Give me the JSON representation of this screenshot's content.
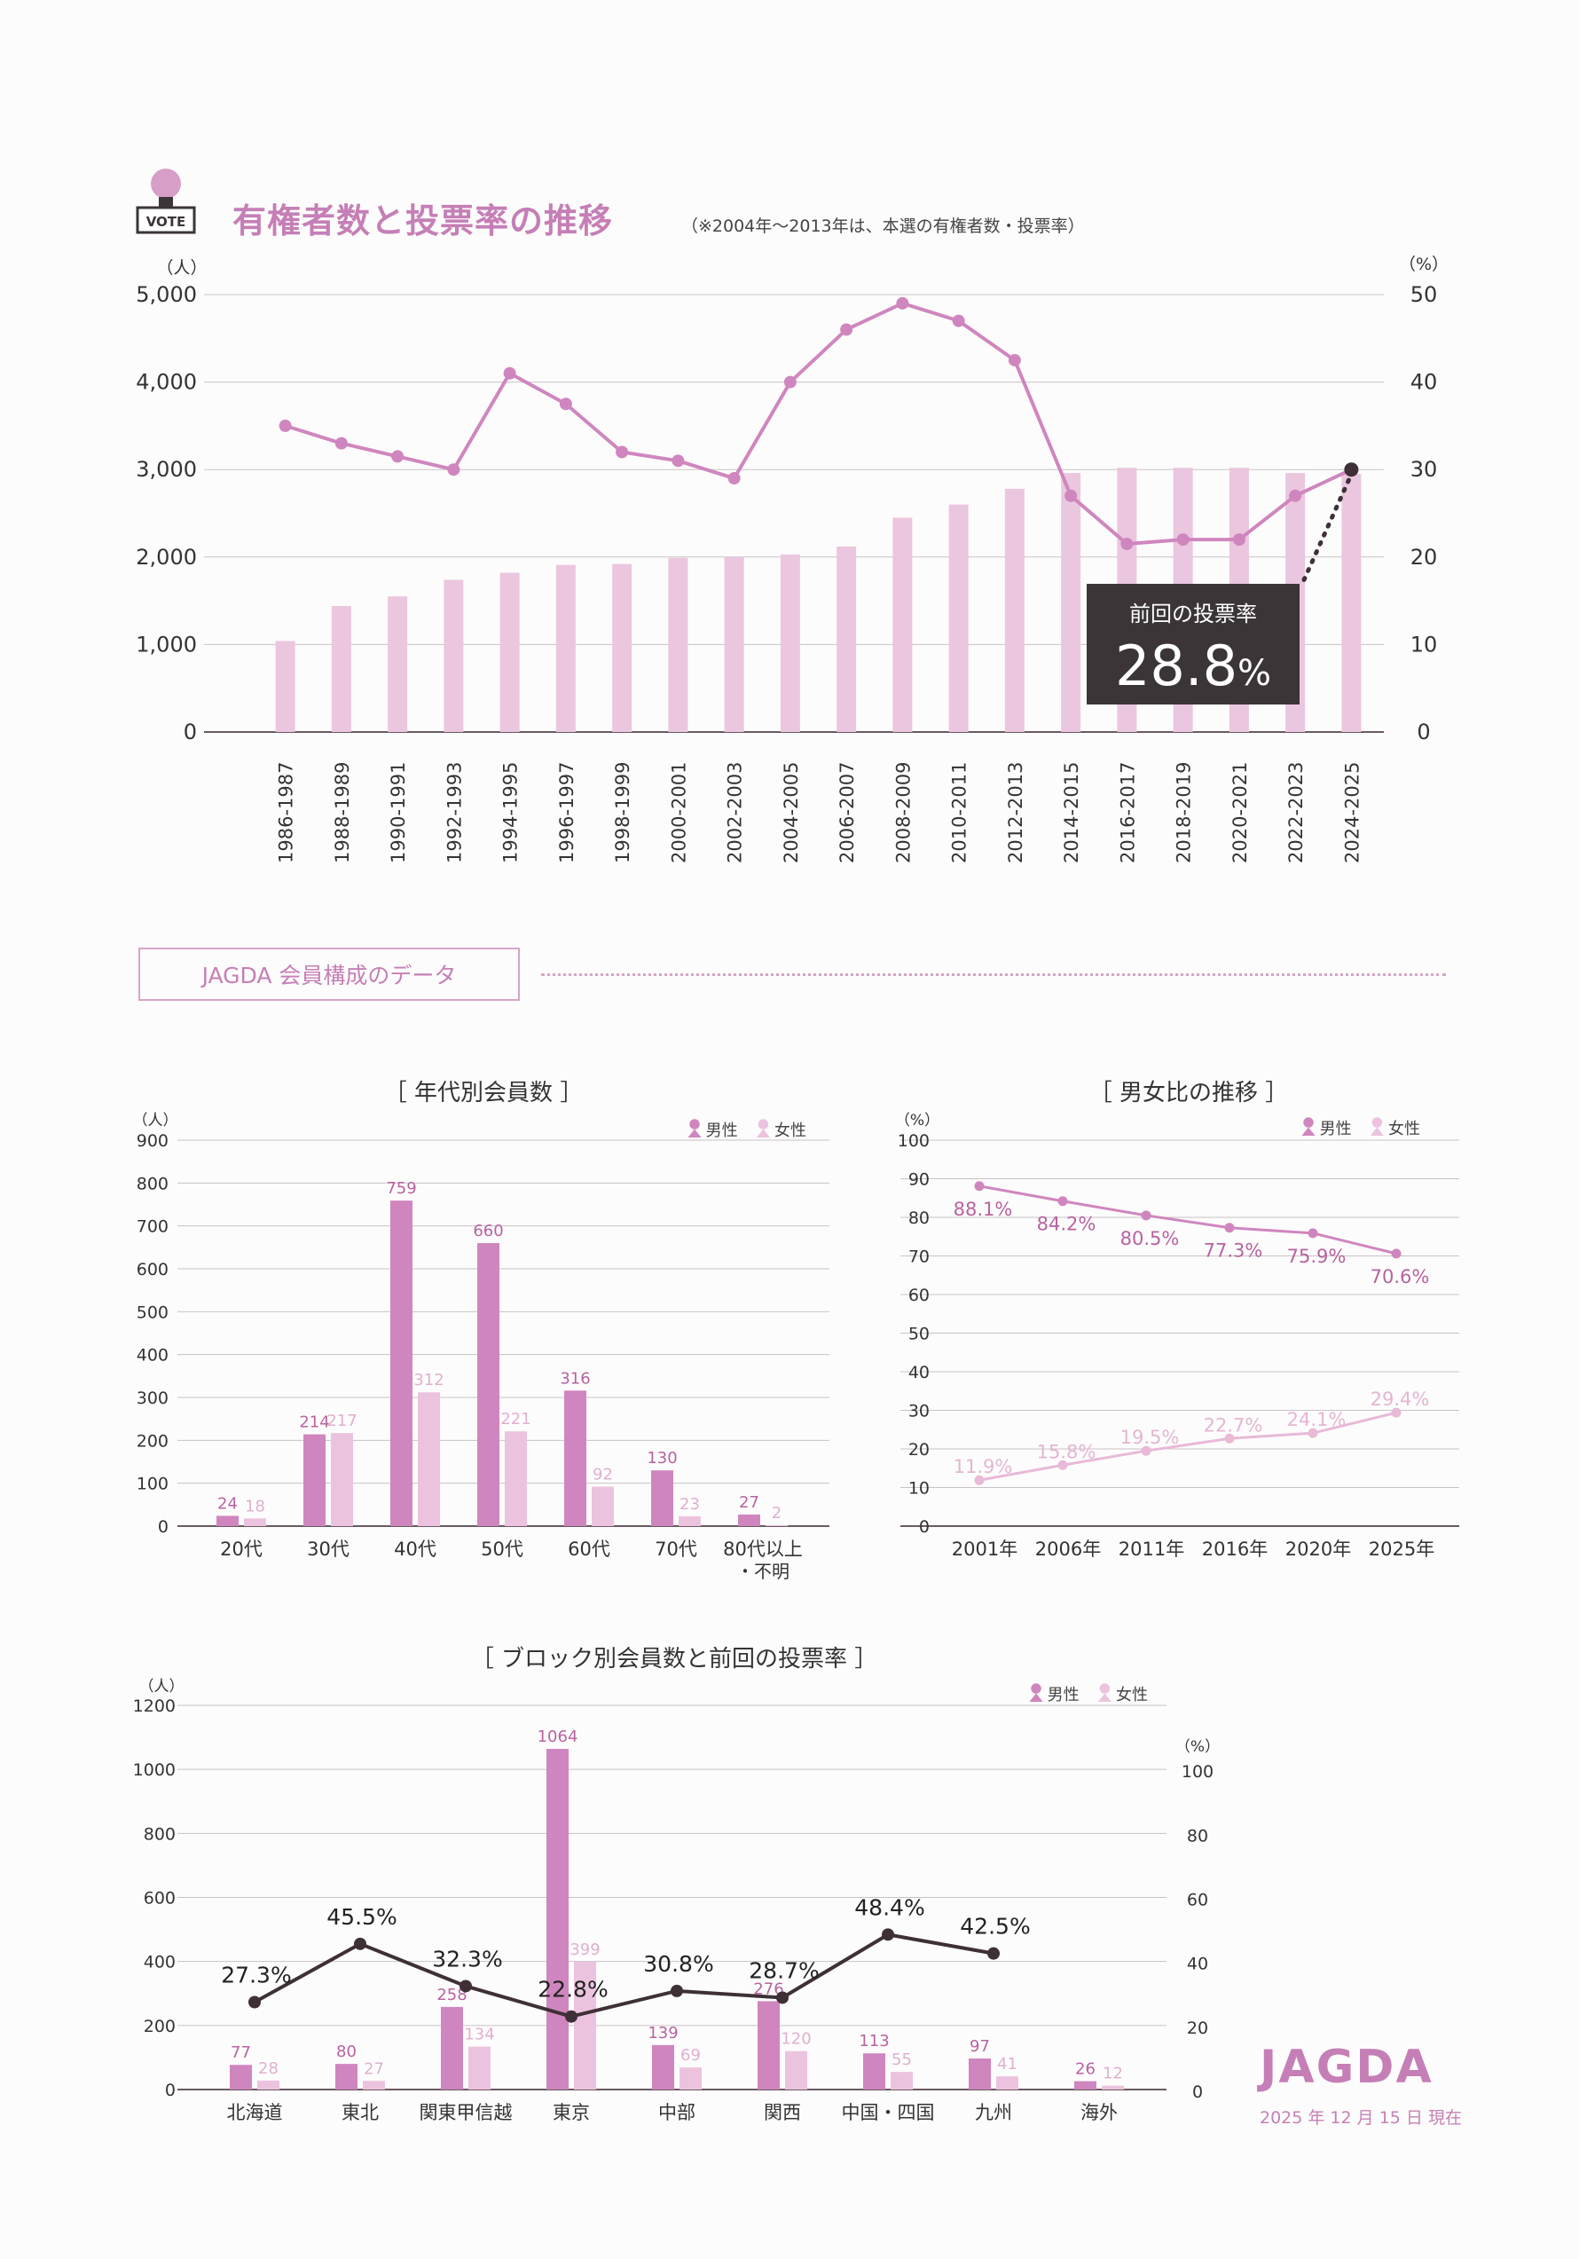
{
  "header": {
    "vote_icon_label": "VOTE",
    "title": "有権者数と投票率の推移",
    "note": "（※2004年～2013年は、本選の有権者数・投票率）"
  },
  "section": {
    "label": "JAGDA 会員構成のデータ"
  },
  "colors": {
    "male": "#cf86be",
    "female": "#ecc3de",
    "line_dark": "#3e3036",
    "accent": "#c57fb6",
    "callout_bg": "#3b3537"
  },
  "chart_data": [
    {
      "id": "voters",
      "type": "bar+line",
      "title": "有権者数と投票率の推移",
      "y_left": {
        "unit": "（人）",
        "ticks": [
          "0",
          "1,000",
          "2,000",
          "3,000",
          "4,000",
          "5,000"
        ],
        "max": 5000
      },
      "y_right": {
        "unit": "（%）",
        "ticks": [
          "0",
          "10",
          "20",
          "30",
          "40",
          "50"
        ],
        "max": 50
      },
      "categories": [
        "1986-1987",
        "1988-1989",
        "1990-1991",
        "1992-1993",
        "1994-1995",
        "1996-1997",
        "1998-1999",
        "2000-2001",
        "2002-2003",
        "2004-2005",
        "2006-2007",
        "2008-2009",
        "2010-2011",
        "2012-2013",
        "2014-2015",
        "2016-2017",
        "2018-2019",
        "2020-2021",
        "2022-2023",
        "2024-2025"
      ],
      "series": [
        {
          "name": "有権者数",
          "values": [
            1040,
            1440,
            1550,
            1740,
            1820,
            1910,
            1920,
            1990,
            2000,
            2030,
            2120,
            2450,
            2600,
            2780,
            2960,
            3020,
            3020,
            3020,
            2960,
            2950
          ]
        },
        {
          "name": "投票率",
          "values": [
            35,
            33,
            31.5,
            30,
            41,
            37.5,
            32,
            31,
            29,
            40,
            46,
            49,
            47,
            42.5,
            27,
            21.5,
            22,
            22,
            27,
            30
          ]
        }
      ],
      "callout": {
        "label": "前回の投票率",
        "value": "28.8",
        "unit": "%"
      }
    },
    {
      "id": "age",
      "type": "bar",
      "title": "［ 年代別会員数 ］",
      "y_unit": "（人）",
      "y_ticks": [
        "0",
        "100",
        "200",
        "300",
        "400",
        "500",
        "600",
        "700",
        "800",
        "900"
      ],
      "y_max": 900,
      "legend": [
        "男性",
        "女性"
      ],
      "categories": [
        "20代",
        "30代",
        "40代",
        "50代",
        "60代",
        "70代",
        "80代以上"
      ],
      "category_sub": [
        "",
        "",
        "",
        "",
        "",
        "",
        "・不明"
      ],
      "series": [
        {
          "name": "男性",
          "values": [
            24,
            214,
            759,
            660,
            316,
            130,
            27
          ]
        },
        {
          "name": "女性",
          "values": [
            18,
            217,
            312,
            221,
            92,
            23,
            2
          ]
        }
      ]
    },
    {
      "id": "gender",
      "type": "line",
      "title": "［ 男女比の推移 ］",
      "y_unit": "（%）",
      "y_ticks": [
        "0",
        "10",
        "20",
        "30",
        "40",
        "50",
        "60",
        "70",
        "80",
        "90",
        "100"
      ],
      "y_max": 100,
      "legend": [
        "男性",
        "女性"
      ],
      "categories": [
        "2001年",
        "2006年",
        "2011年",
        "2016年",
        "2020年",
        "2025年"
      ],
      "series": [
        {
          "name": "男性",
          "values": [
            88.1,
            84.2,
            80.5,
            77.3,
            75.9,
            70.6
          ],
          "labels": [
            "88.1%",
            "84.2%",
            "80.5%",
            "77.3%",
            "75.9%",
            "70.6%"
          ]
        },
        {
          "name": "女性",
          "values": [
            11.9,
            15.8,
            19.5,
            22.7,
            24.1,
            29.4
          ],
          "labels": [
            "11.9%",
            "15.8%",
            "19.5%",
            "22.7%",
            "24.1%",
            "29.4%"
          ]
        }
      ]
    },
    {
      "id": "block",
      "type": "bar+line",
      "title": "［ ブロック別会員数と前回の投票率 ］",
      "y_left": {
        "unit": "（人）",
        "ticks": [
          "0",
          "200",
          "400",
          "600",
          "800",
          "1000",
          "1200"
        ],
        "max": 1200
      },
      "y_right": {
        "unit": "（%）",
        "ticks": [
          "0",
          "20",
          "40",
          "60",
          "80",
          "100"
        ],
        "max": 120
      },
      "legend": [
        "男性",
        "女性"
      ],
      "categories": [
        "北海道",
        "東北",
        "関東甲信越",
        "東京",
        "中部",
        "関西",
        "中国・四国",
        "九州",
        "海外"
      ],
      "series": [
        {
          "name": "男性",
          "values": [
            77,
            80,
            258,
            1064,
            139,
            276,
            113,
            97,
            26
          ]
        },
        {
          "name": "女性",
          "values": [
            28,
            27,
            134,
            399,
            69,
            120,
            55,
            41,
            12
          ]
        },
        {
          "name": "投票率",
          "values": [
            27.3,
            45.5,
            32.3,
            22.8,
            30.8,
            28.7,
            48.4,
            42.5,
            null
          ],
          "labels": [
            "27.3%",
            "45.5%",
            "32.3%",
            "22.8%",
            "30.8%",
            "28.7%",
            "48.4%",
            "42.5%",
            ""
          ]
        }
      ]
    }
  ],
  "footer": {
    "logo": "JAGDA",
    "date": "2025 年 12 月 15 日 現在"
  }
}
